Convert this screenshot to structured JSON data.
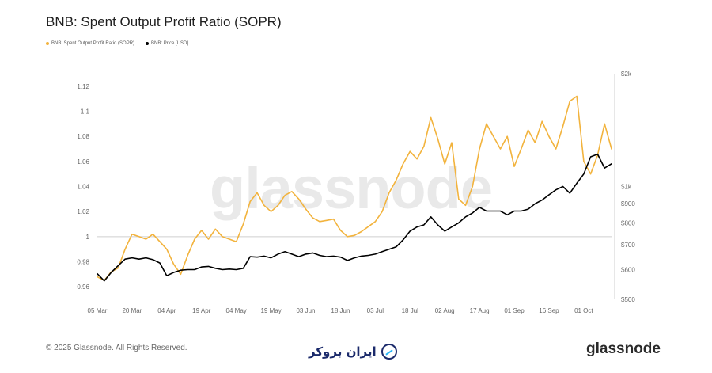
{
  "header": {
    "title": "BNB: Spent Output Profit Ratio (SOPR)"
  },
  "legend": {
    "items": [
      {
        "label": "BNB: Spent Output Profit Ratio (SOPR)",
        "color": "#f2b33d"
      },
      {
        "label": "BNB: Price [USD]",
        "color": "#000000"
      }
    ]
  },
  "watermark": {
    "text": "glassnode"
  },
  "footer": {
    "copyright": "© 2025 Glassnode. All Rights Reserved.",
    "center_brand": "ایران بروکر",
    "right_brand": "glassnode"
  },
  "colors": {
    "sopr": "#f2b33d",
    "price": "#000000",
    "grid": "#d9d9d9",
    "axis_text": "#666666"
  },
  "chart_data": {
    "type": "line",
    "title": "BNB: Spent Output Profit Ratio (SOPR)",
    "xlabel": "",
    "ylabel": "",
    "x_ticks": [
      "05 Mar",
      "20 Mar",
      "04 Apr",
      "19 Apr",
      "04 May",
      "19 May",
      "03 Jun",
      "18 Jun",
      "03 Jul",
      "18 Jul",
      "02 Aug",
      "17 Aug",
      "01 Sep",
      "16 Sep",
      "01 Oct"
    ],
    "y_left": {
      "ticks": [
        "0.96",
        "0.98",
        "1",
        "1.02",
        "1.04",
        "1.06",
        "1.08",
        "1.1",
        "1.12"
      ],
      "ylim": [
        0.95,
        1.13
      ]
    },
    "y_right": {
      "scale": "log",
      "ticks": [
        {
          "label": "$500",
          "value": 500
        },
        {
          "label": "$600",
          "value": 600
        },
        {
          "label": "$700",
          "value": 700
        },
        {
          "label": "$800",
          "value": 800
        },
        {
          "label": "$900",
          "value": 900
        },
        {
          "label": "$1k",
          "value": 1000
        },
        {
          "label": "$2k",
          "value": 2000
        }
      ],
      "ylim": [
        500,
        2000
      ]
    },
    "reference_line": 1.0,
    "grid": false,
    "legend_position": "top-left",
    "series": [
      {
        "name": "BNB: Spent Output Profit Ratio (SOPR)",
        "axis": "left",
        "x": [
          "2025-03-05",
          "2025-03-08",
          "2025-03-11",
          "2025-03-14",
          "2025-03-17",
          "2025-03-20",
          "2025-03-23",
          "2025-03-26",
          "2025-03-29",
          "2025-04-01",
          "2025-04-04",
          "2025-04-07",
          "2025-04-10",
          "2025-04-13",
          "2025-04-16",
          "2025-04-19",
          "2025-04-22",
          "2025-04-25",
          "2025-04-28",
          "2025-05-01",
          "2025-05-04",
          "2025-05-07",
          "2025-05-10",
          "2025-05-13",
          "2025-05-16",
          "2025-05-19",
          "2025-05-22",
          "2025-05-25",
          "2025-05-28",
          "2025-05-31",
          "2025-06-03",
          "2025-06-06",
          "2025-06-09",
          "2025-06-12",
          "2025-06-15",
          "2025-06-18",
          "2025-06-21",
          "2025-06-24",
          "2025-06-27",
          "2025-06-30",
          "2025-07-03",
          "2025-07-06",
          "2025-07-09",
          "2025-07-12",
          "2025-07-15",
          "2025-07-18",
          "2025-07-21",
          "2025-07-24",
          "2025-07-27",
          "2025-07-30",
          "2025-08-02",
          "2025-08-05",
          "2025-08-08",
          "2025-08-11",
          "2025-08-14",
          "2025-08-17",
          "2025-08-20",
          "2025-08-23",
          "2025-08-26",
          "2025-08-29",
          "2025-09-01",
          "2025-09-04",
          "2025-09-07",
          "2025-09-10",
          "2025-09-13",
          "2025-09-16",
          "2025-09-19",
          "2025-09-22",
          "2025-09-25",
          "2025-09-28",
          "2025-10-01",
          "2025-10-04",
          "2025-10-07",
          "2025-10-10",
          "2025-10-13"
        ],
        "values": [
          0.968,
          0.965,
          0.972,
          0.975,
          0.99,
          1.002,
          1.0,
          0.998,
          1.002,
          0.996,
          0.99,
          0.978,
          0.97,
          0.985,
          0.998,
          1.005,
          0.998,
          1.006,
          1.0,
          0.998,
          0.996,
          1.01,
          1.028,
          1.035,
          1.025,
          1.02,
          1.025,
          1.033,
          1.036,
          1.03,
          1.022,
          1.015,
          1.012,
          1.013,
          1.014,
          1.005,
          1.0,
          1.001,
          1.004,
          1.008,
          1.012,
          1.02,
          1.035,
          1.045,
          1.058,
          1.068,
          1.062,
          1.072,
          1.095,
          1.078,
          1.058,
          1.075,
          1.03,
          1.025,
          1.04,
          1.07,
          1.09,
          1.08,
          1.07,
          1.08,
          1.056,
          1.07,
          1.085,
          1.075,
          1.092,
          1.08,
          1.07,
          1.088,
          1.108,
          1.112,
          1.06,
          1.05,
          1.065,
          1.09,
          1.07
        ]
      },
      {
        "name": "BNB: Price [USD]",
        "axis": "right",
        "x": [
          "2025-03-05",
          "2025-03-08",
          "2025-03-11",
          "2025-03-14",
          "2025-03-17",
          "2025-03-20",
          "2025-03-23",
          "2025-03-26",
          "2025-03-29",
          "2025-04-01",
          "2025-04-04",
          "2025-04-07",
          "2025-04-10",
          "2025-04-13",
          "2025-04-16",
          "2025-04-19",
          "2025-04-22",
          "2025-04-25",
          "2025-04-28",
          "2025-05-01",
          "2025-05-04",
          "2025-05-07",
          "2025-05-10",
          "2025-05-13",
          "2025-05-16",
          "2025-05-19",
          "2025-05-22",
          "2025-05-25",
          "2025-05-28",
          "2025-05-31",
          "2025-06-03",
          "2025-06-06",
          "2025-06-09",
          "2025-06-12",
          "2025-06-15",
          "2025-06-18",
          "2025-06-21",
          "2025-06-24",
          "2025-06-27",
          "2025-06-30",
          "2025-07-03",
          "2025-07-06",
          "2025-07-09",
          "2025-07-12",
          "2025-07-15",
          "2025-07-18",
          "2025-07-21",
          "2025-07-24",
          "2025-07-27",
          "2025-07-30",
          "2025-08-02",
          "2025-08-05",
          "2025-08-08",
          "2025-08-11",
          "2025-08-14",
          "2025-08-17",
          "2025-08-20",
          "2025-08-23",
          "2025-08-26",
          "2025-08-29",
          "2025-09-01",
          "2025-09-04",
          "2025-09-07",
          "2025-09-10",
          "2025-09-13",
          "2025-09-16",
          "2025-09-19",
          "2025-09-22",
          "2025-09-25",
          "2025-09-28",
          "2025-10-01",
          "2025-10-04",
          "2025-10-07",
          "2025-10-10",
          "2025-10-13"
        ],
        "values": [
          585,
          560,
          590,
          615,
          640,
          645,
          640,
          645,
          638,
          625,
          578,
          590,
          598,
          600,
          600,
          610,
          612,
          605,
          600,
          602,
          600,
          605,
          650,
          648,
          652,
          645,
          660,
          670,
          660,
          650,
          660,
          665,
          655,
          650,
          652,
          648,
          635,
          645,
          652,
          655,
          660,
          670,
          680,
          690,
          720,
          760,
          780,
          790,
          830,
          790,
          760,
          780,
          800,
          830,
          850,
          880,
          860,
          860,
          860,
          840,
          860,
          860,
          870,
          900,
          920,
          950,
          980,
          1000,
          960,
          1020,
          1080,
          1200,
          1220,
          1120,
          1150
        ]
      }
    ]
  }
}
